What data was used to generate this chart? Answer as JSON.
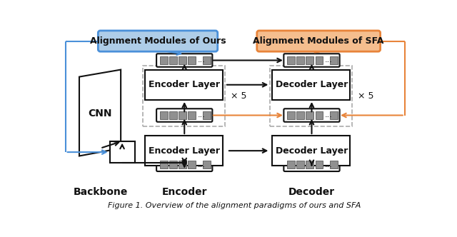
{
  "fig_width": 6.4,
  "fig_height": 3.32,
  "bg": "#ffffff",
  "blue": "#4a90d9",
  "blue_fill": "#aecde8",
  "orange": "#e8843a",
  "orange_fill": "#f5be8e",
  "gray_sq": "#909090",
  "black": "#111111",
  "white": "#ffffff",
  "dash_c": "#aaaaaa",
  "lbl_backbone": "Backbone",
  "lbl_encoder": "Encoder",
  "lbl_decoder": "Decoder",
  "lbl_ours": "Alignment Modules of Ours",
  "lbl_sfa": "Alignment Modules of SFA",
  "lbl_enc": "Encoder Layer",
  "lbl_dec": "Decoder Layer",
  "lbl_cnn": "CNN",
  "x5": "× 5",
  "caption": "Figure 1. Overview of the alignment paradigms of ours and SFA"
}
